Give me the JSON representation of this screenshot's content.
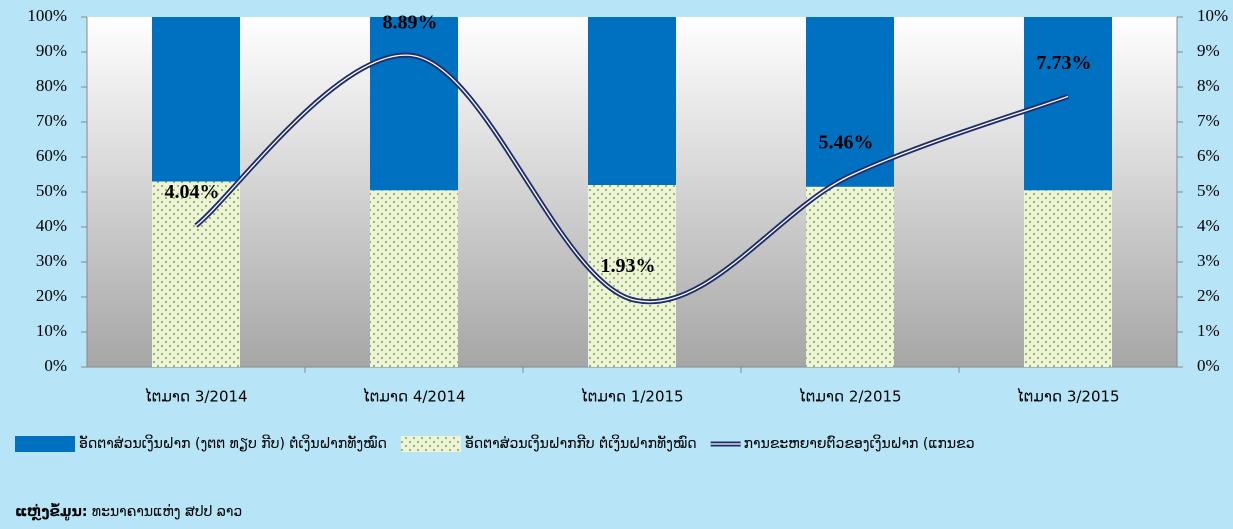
{
  "chart_data": {
    "type": "bar",
    "categories": [
      "ໄຕມາດ 3/2014",
      "ໄຕມາດ 4/2014",
      "ໄຕມາດ 1/2015",
      "ໄຕມາດ 2/2015",
      "ໄຕມາດ 3/2015"
    ],
    "stacked": true,
    "series": [
      {
        "name": "ອັດຕາສ່ວນເງິນຝາກກີບ ຕໍ່ເງິນຝາກທັງໝົດ",
        "color": "#8fb356",
        "pattern": "dots",
        "values": [
          53,
          50.5,
          52,
          51.5,
          50.5
        ]
      },
      {
        "name": "ອັດຕາສ່ວນເງິນຝາກ (ງຕຕ ທຽບ ກີບ) ຕໍ່ເງິນຝາກທັງໝົດ",
        "color": "#0070c0",
        "values": [
          47,
          49.5,
          48,
          48.5,
          49.5
        ]
      },
      {
        "name": "ການຂະຫຍາຍຕົວຂອງເງິນຝາກ (ແກນຂວ",
        "color": "#1f2d6b",
        "type": "line",
        "axis": "y2",
        "smooth": true,
        "values": [
          4.04,
          8.89,
          1.93,
          5.46,
          7.73
        ],
        "value_labels": [
          "4.04%",
          "8.89%",
          "1.93%",
          "5.46%",
          "7.73%"
        ]
      }
    ],
    "legend_order": [
      1,
      0,
      2
    ],
    "ylim": [
      0,
      100
    ],
    "yticks": [
      {
        "value": 0,
        "label": "0%"
      },
      {
        "value": 10,
        "label": "10%"
      },
      {
        "value": 20,
        "label": "20%"
      },
      {
        "value": 30,
        "label": "30%"
      },
      {
        "value": 40,
        "label": "40%"
      },
      {
        "value": 50,
        "label": "50%"
      },
      {
        "value": 60,
        "label": "60%"
      },
      {
        "value": 70,
        "label": "70%"
      },
      {
        "value": 80,
        "label": "80%"
      },
      {
        "value": 90,
        "label": "90%"
      },
      {
        "value": 100,
        "label": "100%"
      }
    ],
    "y2lim": [
      0,
      10
    ],
    "y2ticks": [
      {
        "value": 0,
        "label": "0%"
      },
      {
        "value": 1,
        "label": "1%"
      },
      {
        "value": 2,
        "label": "2%"
      },
      {
        "value": 3,
        "label": "3%"
      },
      {
        "value": 4,
        "label": "4%"
      },
      {
        "value": 5,
        "label": "5%"
      },
      {
        "value": 6,
        "label": "6%"
      },
      {
        "value": 7,
        "label": "7%"
      },
      {
        "value": 8,
        "label": "8%"
      },
      {
        "value": 9,
        "label": "9%"
      },
      {
        "value": 10,
        "label": "10%"
      }
    ],
    "legend": "bottom",
    "source_label": "ແຫຼ່ງຂໍ້ມູນ:",
    "source": "ທະນາຄານແຫ່ງ ສປປ ລາວ"
  }
}
